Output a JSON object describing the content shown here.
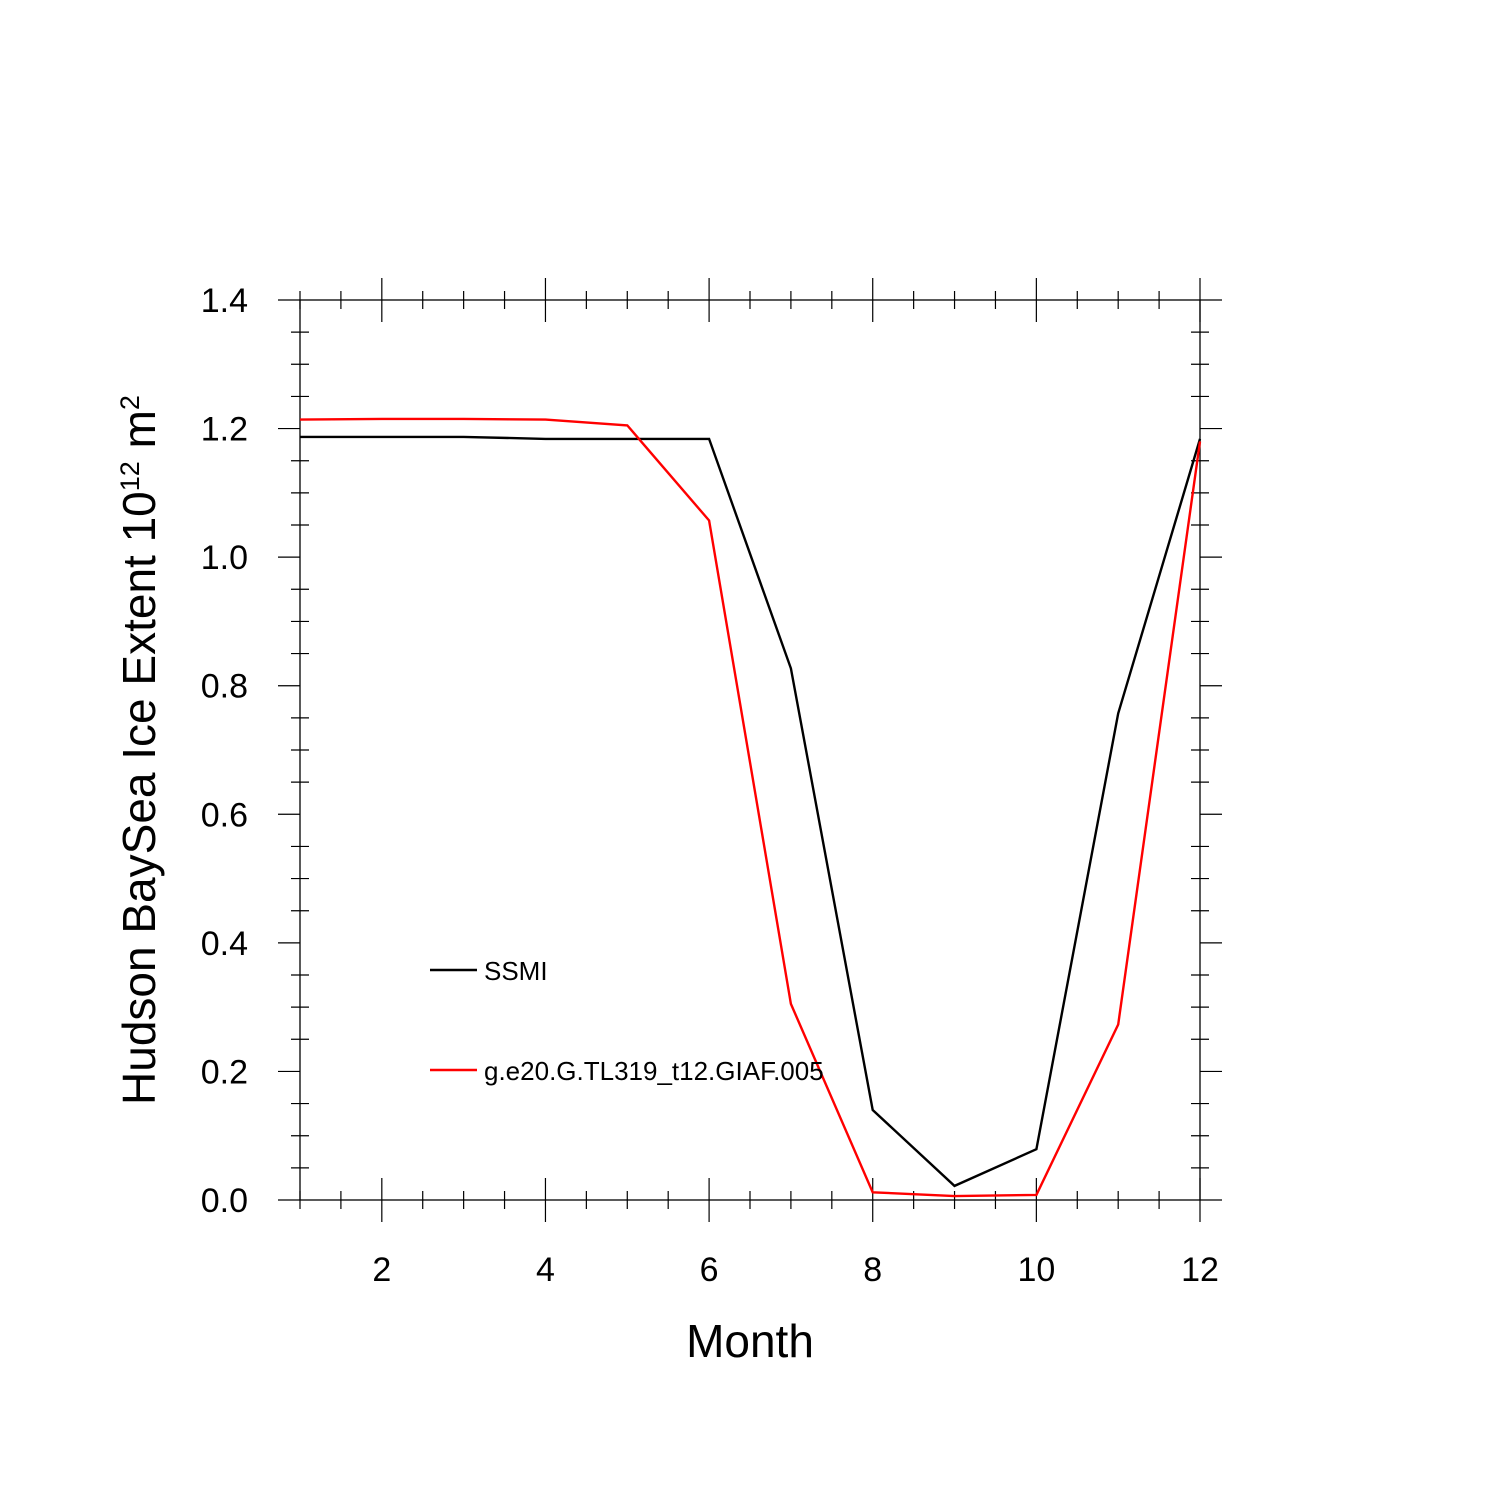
{
  "chart_data": {
    "type": "line",
    "title": "",
    "xlabel": "Month",
    "ylabel": {
      "prefix": "Hudson BaySea Ice Extent 10",
      "exponent": "12",
      "unit": " m",
      "unit_exponent": "2"
    },
    "xlim": [
      1,
      12
    ],
    "ylim": [
      0,
      1.4
    ],
    "xticks": [
      2,
      4,
      6,
      8,
      10,
      12
    ],
    "xtick_labels": [
      "2",
      "4",
      "6",
      "8",
      "10",
      "12"
    ],
    "yticks": [
      0,
      0.2,
      0.4,
      0.6,
      0.8,
      1.0,
      1.2,
      1.4
    ],
    "ytick_labels": [
      "0.0",
      "0.2",
      "0.4",
      "0.6",
      "0.8",
      "1.0",
      "1.2",
      "1.4"
    ],
    "x": [
      1,
      2,
      3,
      4,
      5,
      6,
      7,
      8,
      9,
      10,
      11,
      12
    ],
    "series": [
      {
        "name": "SSMI",
        "color": "#000000",
        "values": [
          1.187,
          1.187,
          1.187,
          1.184,
          1.184,
          1.184,
          0.827,
          0.14,
          0.022,
          0.079,
          0.757,
          1.184
        ]
      },
      {
        "name": "g.e20.G.TL319_t12.GIAF.005",
        "color": "#ff0000",
        "values": [
          1.214,
          1.215,
          1.215,
          1.214,
          1.205,
          1.057,
          0.305,
          0.012,
          0.006,
          0.008,
          0.273,
          1.18
        ]
      }
    ],
    "legend": {
      "position": "lower-left",
      "entries": [
        "SSMI",
        "g.e20.G.TL319_t12.GIAF.005"
      ]
    },
    "grid": false
  }
}
